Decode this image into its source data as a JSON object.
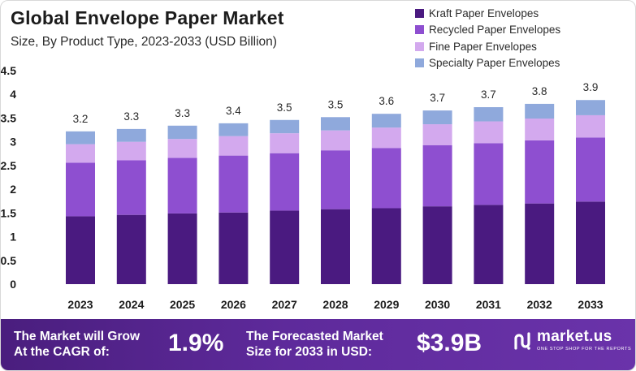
{
  "header": {
    "title": "Global Envelope Paper Market",
    "subtitle": "Size, By Product Type, 2023-2033 (USD Billion)"
  },
  "chart_data": {
    "type": "bar",
    "stacked": true,
    "categories": [
      "2023",
      "2024",
      "2025",
      "2026",
      "2027",
      "2028",
      "2029",
      "2030",
      "2031",
      "2032",
      "2033"
    ],
    "totals_labels": [
      "3.2",
      "3.3",
      "3.3",
      "3.4",
      "3.5",
      "3.5",
      "3.6",
      "3.7",
      "3.7",
      "3.8",
      "3.9"
    ],
    "series": [
      {
        "name": "Kraft Paper Envelopes",
        "color": "#4a1a80",
        "values": [
          1.43,
          1.46,
          1.49,
          1.51,
          1.55,
          1.58,
          1.6,
          1.64,
          1.67,
          1.7,
          1.74
        ]
      },
      {
        "name": "Recycled Paper Envelopes",
        "color": "#8e4fd0",
        "values": [
          1.13,
          1.15,
          1.17,
          1.2,
          1.21,
          1.24,
          1.27,
          1.29,
          1.3,
          1.33,
          1.35
        ]
      },
      {
        "name": "Fine Paper Envelopes",
        "color": "#d3a9ee",
        "values": [
          0.39,
          0.39,
          0.4,
          0.41,
          0.42,
          0.42,
          0.43,
          0.44,
          0.46,
          0.46,
          0.47
        ]
      },
      {
        "name": "Specialty Paper Envelopes",
        "color": "#8fa9dc",
        "values": [
          0.27,
          0.27,
          0.28,
          0.27,
          0.28,
          0.28,
          0.29,
          0.29,
          0.3,
          0.31,
          0.32
        ]
      }
    ],
    "y_ticks": [
      "0",
      "0.5",
      "1",
      "1.5",
      "2",
      "2.5",
      "3",
      "3.5",
      "4",
      "4.5"
    ],
    "ylim": [
      0,
      4.5
    ],
    "xlabel": "",
    "ylabel": "",
    "grid": false,
    "legend_position": "top-right"
  },
  "footer": {
    "cagr_label": "The Market will Grow At the CAGR of:",
    "cagr_value": "1.9%",
    "forecast_label": "The Forecasted Market Size for 2033 in USD:",
    "forecast_value": "$3.9B",
    "brand_name": "market.us",
    "brand_tagline": "ONE STOP SHOP FOR THE REPORTS"
  }
}
